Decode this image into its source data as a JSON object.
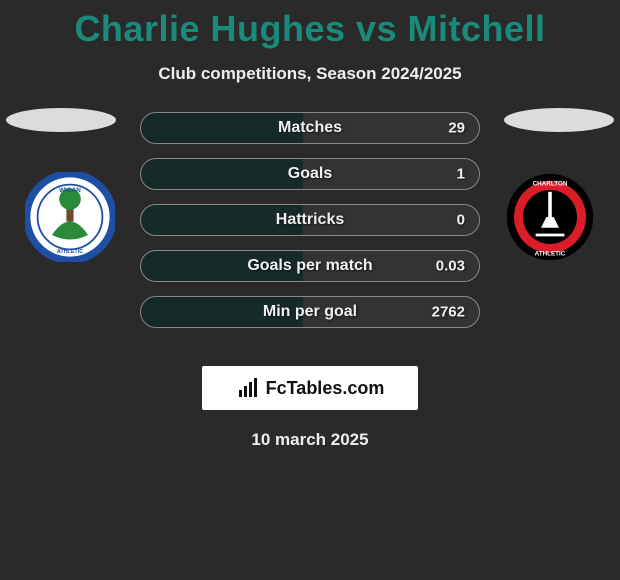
{
  "title": "Charlie Hughes vs Mitchell",
  "subtitle": "Club competitions, Season 2024/2025",
  "date": "10 march 2025",
  "brand": {
    "text": "FcTables.com"
  },
  "colors": {
    "title": "#1a8a7a",
    "background": "#2a2a2a",
    "bar_border": "#888888",
    "bar_bg": "#333333",
    "bar_fill": "#172a2a",
    "text": "#f0f0f0"
  },
  "left_club": {
    "name": "Wigan Athletic",
    "badge_bg": "#ffffff",
    "badge_ring": "#1e4fa3",
    "badge_inner": "#2a8a3a"
  },
  "right_club": {
    "name": "Charlton Athletic",
    "badge_bg": "#000000",
    "badge_ring": "#d91e2a",
    "badge_inner": "#d91e2a"
  },
  "stats": [
    {
      "label": "Matches",
      "value": "29",
      "fill_pct": 48
    },
    {
      "label": "Goals",
      "value": "1",
      "fill_pct": 48
    },
    {
      "label": "Hattricks",
      "value": "0",
      "fill_pct": 48
    },
    {
      "label": "Goals per match",
      "value": "0.03",
      "fill_pct": 48
    },
    {
      "label": "Min per goal",
      "value": "2762",
      "fill_pct": 48
    }
  ]
}
